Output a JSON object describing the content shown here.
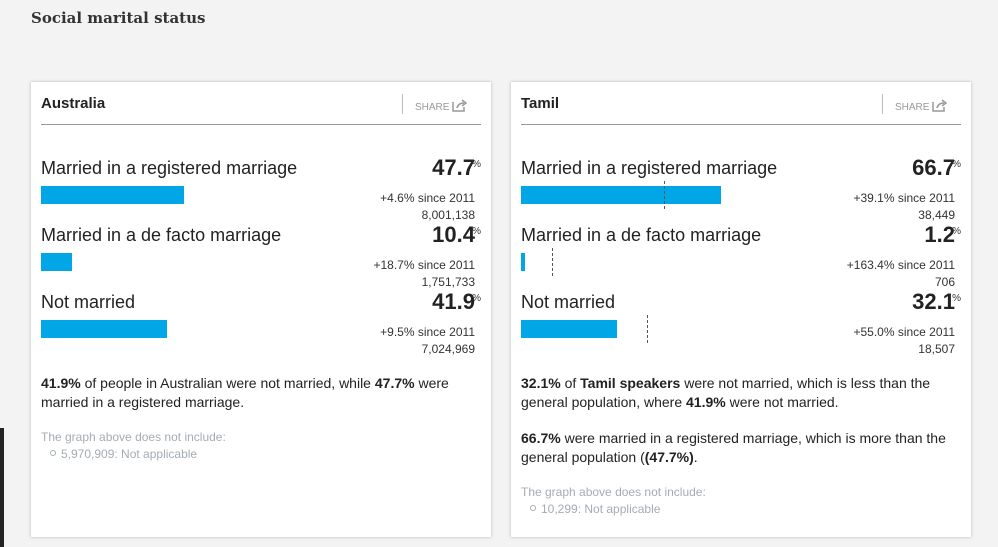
{
  "title": "Social marital status",
  "panels": [
    {
      "heading": "Australia",
      "share": "SHARE",
      "rows": [
        {
          "label": "Married in a registered marriage",
          "value": 47.7,
          "unit": "%",
          "change": "+4.6% since 2011",
          "count": "8,001,138"
        },
        {
          "label": "Married in a de facto marriage",
          "value": 10.4,
          "unit": "%",
          "change": "+18.7% since 2011",
          "count": "1,751,733"
        },
        {
          "label": "Not married",
          "value": 41.9,
          "unit": "%",
          "change": "+9.5% since 2011",
          "count": "7,024,969"
        }
      ],
      "paragraphs": [
        [
          {
            "text": "41.9%",
            "bold": true
          },
          {
            "text": " of people in Australian were not married, while "
          },
          {
            "text": "47.7%",
            "bold": true
          },
          {
            "text": " were married in a registered marriage."
          }
        ]
      ],
      "exclusion_note": "The graph above does not include:",
      "exclusions": [
        "5,970,909: Not applicable"
      ]
    },
    {
      "heading": "Tamil",
      "share": "SHARE",
      "rows": [
        {
          "label": "Married in a registered marriage",
          "value": 66.7,
          "unit": "%",
          "change": "+39.1% since 2011",
          "count": "38,449"
        },
        {
          "label": "Married in a de facto marriage",
          "value": 1.2,
          "unit": "%",
          "change": "+163.4% since 2011",
          "count": "706"
        },
        {
          "label": "Not married",
          "value": 32.1,
          "unit": "%",
          "change": "+55.0% since 2011",
          "count": "18,507"
        }
      ],
      "paragraphs": [
        [
          {
            "text": "32.1%",
            "bold": true
          },
          {
            "text": " of "
          },
          {
            "text": "Tamil speakers",
            "bold": true
          },
          {
            "text": " were not married, which is less than the general population, where "
          },
          {
            "text": "41.9%",
            "bold": true
          },
          {
            "text": " were not married."
          }
        ],
        [
          {
            "text": "66.7%",
            "bold": true
          },
          {
            "text": " were married in a registered marriage, which is more than the general population ("
          },
          {
            "text": "(47.7%)",
            "bold": true
          },
          {
            "text": "."
          }
        ]
      ],
      "exclusion_note": "The graph above does not include:",
      "exclusions": [
        "10,299: Not applicable"
      ]
    }
  ]
}
